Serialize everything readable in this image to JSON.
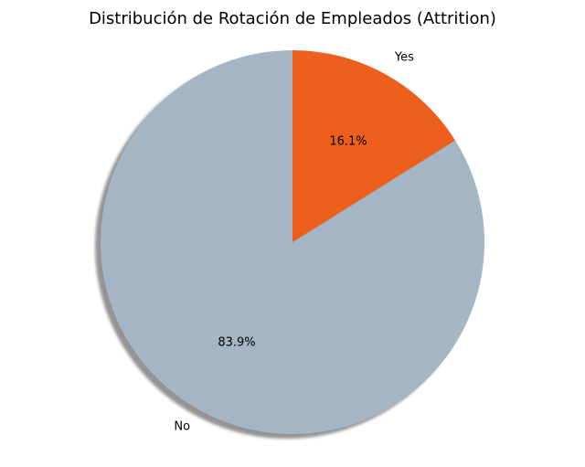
{
  "chart_data": {
    "type": "pie",
    "title": "Distribución de Rotación de Empleados (Attrition)",
    "categories": [
      "No",
      "Yes"
    ],
    "values": [
      83.9,
      16.1
    ],
    "percent_labels": [
      "83.9%",
      "16.1%"
    ],
    "colors": [
      "#a4b5c4",
      "#ee5f1e"
    ],
    "start_angle_deg": 90,
    "direction": "counterclockwise",
    "shadow": true
  }
}
